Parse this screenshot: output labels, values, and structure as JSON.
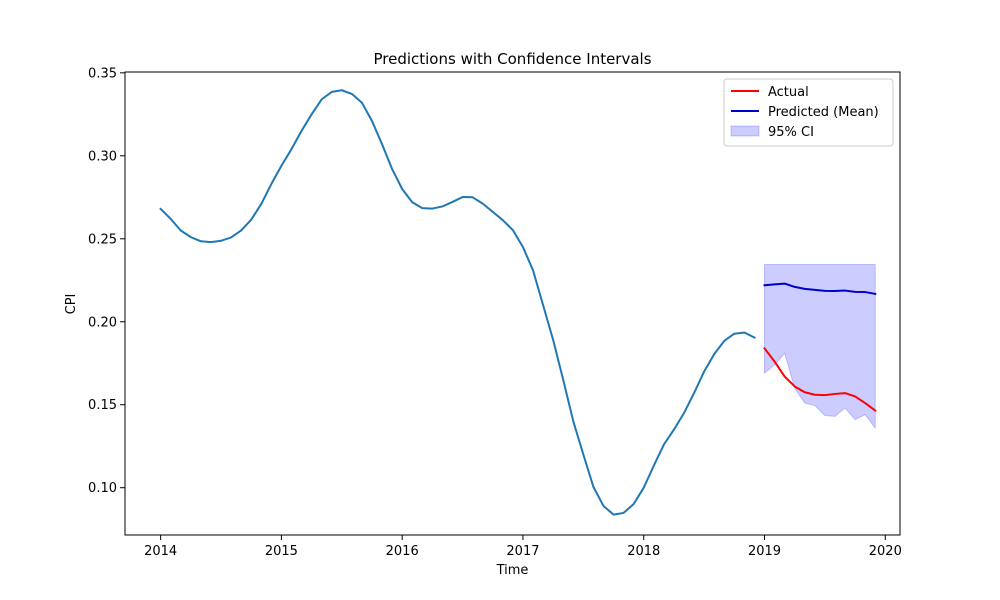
{
  "chart_data": {
    "type": "line",
    "title": "Predictions with Confidence Intervals",
    "xlabel": "Time",
    "ylabel": "CPI",
    "xlim": [
      "2013-09-15",
      "2020-02-15"
    ],
    "ylim": [
      0.0715,
      0.3505
    ],
    "x_ticks": [
      "2014",
      "2015",
      "2016",
      "2017",
      "2018",
      "2019",
      "2020"
    ],
    "y_ticks": [
      "0.10",
      "0.15",
      "0.20",
      "0.25",
      "0.30",
      "0.35"
    ],
    "y_tick_values": [
      0.1,
      0.15,
      0.2,
      0.25,
      0.3,
      0.35
    ],
    "legend_position": "upper right",
    "colors": {
      "history": "#1f77b4",
      "actual": "#ff0000",
      "predicted": "#0000cc",
      "ci_fill": "#0000ff"
    },
    "history": {
      "x": [
        "2014-01",
        "2014-02",
        "2014-03",
        "2014-04",
        "2014-05",
        "2014-06",
        "2014-07",
        "2014-08",
        "2014-09",
        "2014-10",
        "2014-11",
        "2014-12",
        "2015-01",
        "2015-02",
        "2015-03",
        "2015-04",
        "2015-05",
        "2015-06",
        "2015-07",
        "2015-08",
        "2015-09",
        "2015-10",
        "2015-11",
        "2015-12",
        "2016-01",
        "2016-02",
        "2016-03",
        "2016-04",
        "2016-05",
        "2016-06",
        "2016-07",
        "2016-08",
        "2016-09",
        "2016-10",
        "2016-11",
        "2016-12",
        "2017-01",
        "2017-02",
        "2017-03",
        "2017-04",
        "2017-05",
        "2017-06",
        "2017-07",
        "2017-08",
        "2017-09",
        "2017-10",
        "2017-11",
        "2017-12",
        "2018-01",
        "2018-02",
        "2018-03",
        "2018-04",
        "2018-05",
        "2018-06",
        "2018-07",
        "2018-08",
        "2018-09",
        "2018-10",
        "2018-11",
        "2018-12"
      ],
      "values": [
        0.268,
        0.262,
        0.255,
        0.251,
        0.2485,
        0.248,
        0.2488,
        0.2508,
        0.255,
        0.2615,
        0.271,
        0.283,
        0.294,
        0.304,
        0.315,
        0.325,
        0.334,
        0.3385,
        0.3395,
        0.3373,
        0.332,
        0.321,
        0.307,
        0.292,
        0.28,
        0.272,
        0.2685,
        0.2682,
        0.2695,
        0.2722,
        0.2752,
        0.275,
        0.2712,
        0.2662,
        0.2612,
        0.2552,
        0.245,
        0.231,
        0.21,
        0.189,
        0.165,
        0.14,
        0.12,
        0.1005,
        0.089,
        0.0838,
        0.0848,
        0.0902,
        0.1,
        0.1133,
        0.126,
        0.135,
        0.145,
        0.157,
        0.17,
        0.1805,
        0.1885,
        0.1928,
        0.1935,
        0.1905
      ]
    },
    "series": [
      {
        "name": "Actual",
        "x": [
          "2019-01",
          "2019-02",
          "2019-03",
          "2019-04",
          "2019-05",
          "2019-06",
          "2019-07",
          "2019-08",
          "2019-09",
          "2019-10",
          "2019-11",
          "2019-12"
        ],
        "values": [
          0.184,
          0.176,
          0.167,
          0.161,
          0.1575,
          0.156,
          0.1558,
          0.1565,
          0.157,
          0.155,
          0.151,
          0.1465
        ]
      },
      {
        "name": "Predicted (Mean)",
        "x": [
          "2019-01",
          "2019-02",
          "2019-03",
          "2019-04",
          "2019-05",
          "2019-06",
          "2019-07",
          "2019-08",
          "2019-09",
          "2019-10",
          "2019-11",
          "2019-12"
        ],
        "values": [
          0.222,
          0.2225,
          0.223,
          0.221,
          0.2198,
          0.2192,
          0.2186,
          0.2185,
          0.2188,
          0.218,
          0.2179,
          0.2168
        ]
      }
    ],
    "ci": {
      "name": "95% CI",
      "x": [
        "2019-01",
        "2019-02",
        "2019-03",
        "2019-04",
        "2019-05",
        "2019-06",
        "2019-07",
        "2019-08",
        "2019-09",
        "2019-10",
        "2019-11",
        "2019-12"
      ],
      "upper": [
        0.2345,
        0.2345,
        0.2345,
        0.2345,
        0.2345,
        0.2345,
        0.2345,
        0.2345,
        0.2345,
        0.2345,
        0.2345,
        0.2345
      ],
      "lower": [
        0.169,
        0.174,
        0.181,
        0.16,
        0.151,
        0.1495,
        0.1435,
        0.143,
        0.148,
        0.141,
        0.144,
        0.136
      ]
    }
  }
}
